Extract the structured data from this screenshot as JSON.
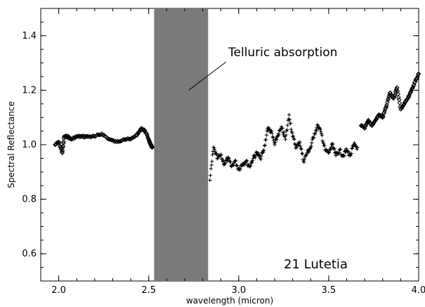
{
  "chart_data": {
    "type": "scatter",
    "title": "",
    "xlabel": "wavelength (micron)",
    "ylabel": "Spectral Reflectance",
    "xlim": [
      1.9,
      4.0
    ],
    "ylim": [
      0.5,
      1.5
    ],
    "xticks": [
      2.0,
      2.5,
      3.0,
      3.5,
      4.0
    ],
    "xtick_labels": [
      "2.0",
      "2.5",
      "3.0",
      "3.5",
      "4.0"
    ],
    "yticks": [
      0.6,
      0.8,
      1.0,
      1.2,
      1.4
    ],
    "ytick_labels": [
      "0.6",
      "0.8",
      "1.0",
      "1.2",
      "1.4"
    ],
    "grid": false,
    "shaded_band": {
      "x_start": 2.53,
      "x_end": 2.83,
      "color": "#7a7a7a"
    },
    "annotations": [
      {
        "text": "Telluric absorption",
        "points_to": [
          2.73,
          1.2
        ]
      },
      {
        "text": "21 Lutetia",
        "at": [
          3.5,
          0.53
        ]
      }
    ],
    "series": [
      {
        "marker": "diamond",
        "color": "#000000",
        "x": [
          1.98,
          2.0,
          2.02,
          2.03,
          2.05,
          2.07,
          2.1,
          2.13,
          2.16,
          2.2,
          2.24,
          2.28,
          2.32,
          2.36,
          2.4,
          2.44,
          2.46,
          2.48,
          2.5,
          2.51,
          2.52
        ],
        "y": [
          1.0,
          1.01,
          0.97,
          1.03,
          1.03,
          1.02,
          1.03,
          1.03,
          1.03,
          1.03,
          1.04,
          1.02,
          1.01,
          1.02,
          1.02,
          1.04,
          1.06,
          1.05,
          1.02,
          1.0,
          0.99
        ]
      },
      {
        "marker": "cross",
        "color": "#000000",
        "x": [
          2.84,
          2.86,
          2.88,
          2.9,
          2.92,
          2.94,
          2.96,
          2.98,
          3.0,
          3.02,
          3.04,
          3.06,
          3.08,
          3.1,
          3.12,
          3.14,
          3.16,
          3.18,
          3.2,
          3.22,
          3.24,
          3.26,
          3.28,
          3.3,
          3.32,
          3.34,
          3.36,
          3.38,
          3.4,
          3.42,
          3.44,
          3.46,
          3.48,
          3.5,
          3.52,
          3.54,
          3.56,
          3.58,
          3.6,
          3.62,
          3.64,
          3.66
        ],
        "y": [
          0.87,
          0.99,
          0.95,
          0.96,
          0.93,
          0.95,
          0.92,
          0.94,
          0.91,
          0.93,
          0.94,
          0.92,
          0.95,
          0.97,
          0.95,
          0.98,
          1.06,
          1.05,
          1.0,
          1.04,
          1.06,
          1.02,
          1.11,
          1.03,
          0.99,
          1.01,
          0.94,
          0.97,
          0.99,
          1.04,
          1.07,
          1.04,
          0.98,
          0.97,
          1.0,
          0.96,
          0.98,
          0.96,
          0.98,
          0.96,
          1.0,
          0.99
        ]
      },
      {
        "marker": "diamond",
        "color": "#000000",
        "x": [
          3.68,
          3.7,
          3.72,
          3.74,
          3.76,
          3.78,
          3.8,
          3.82,
          3.84,
          3.86,
          3.88,
          3.9,
          3.92,
          3.94,
          3.96,
          3.98,
          4.0
        ],
        "y": [
          1.07,
          1.06,
          1.09,
          1.07,
          1.09,
          1.11,
          1.1,
          1.14,
          1.19,
          1.17,
          1.21,
          1.13,
          1.15,
          1.17,
          1.2,
          1.23,
          1.26
        ]
      }
    ]
  }
}
